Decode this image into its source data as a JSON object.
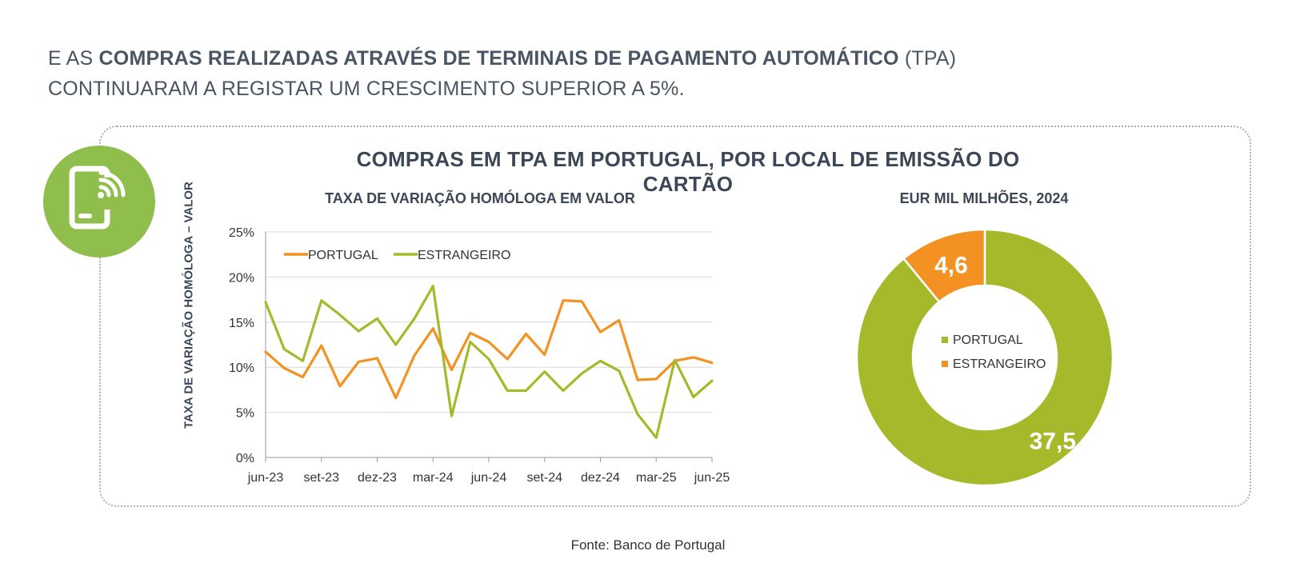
{
  "headline": {
    "line1_pre": "E AS ",
    "line1_bold": "COMPRAS REALIZADAS ATRAVÉS DE TERMINAIS DE PAGAMENTO AUTOMÁTICO",
    "line1_post": " (TPA)",
    "line2": "CONTINUARAM A REGISTAR UM CRESCIMENTO SUPERIOR A 5%."
  },
  "badge": {
    "icon": "mobile-payment-icon",
    "color": "#8fbe4c"
  },
  "panel_title": "COMPRAS EM TPA EM PORTUGAL, POR LOCAL DE EMISSÃO DO CARTÃO",
  "source": "Fonte: Banco de Portugal",
  "chart_data": [
    {
      "type": "line",
      "title": "TAXA DE VARIAÇÃO HOMÓLOGA EM VALOR",
      "ylabel": "TAXA DE VARIAÇÃO HOMÓLOGA – VALOR",
      "xlabel": "",
      "ylim": [
        0,
        25
      ],
      "yticks": [
        "0%",
        "5%",
        "10%",
        "15%",
        "20%",
        "25%"
      ],
      "ytick_values": [
        0,
        5,
        10,
        15,
        20,
        25
      ],
      "xtick_labels": [
        "jun-23",
        "set-23",
        "dez-23",
        "mar-24",
        "jun-24",
        "set-24",
        "dez-24",
        "mar-25",
        "jun-25"
      ],
      "xtick_positions": [
        0,
        3,
        6,
        9,
        12,
        15,
        18,
        21,
        24
      ],
      "grid": true,
      "legend": "top-left",
      "series": [
        {
          "name": "PORTUGAL",
          "color": "#f39223",
          "values": [
            11.7,
            9.9,
            8.9,
            12.4,
            7.9,
            10.6,
            11.0,
            6.6,
            11.3,
            14.3,
            9.7,
            13.8,
            12.8,
            10.9,
            13.7,
            11.4,
            17.4,
            17.3,
            13.9,
            15.2,
            8.6,
            8.7,
            10.7,
            11.1,
            10.5
          ]
        },
        {
          "name": "ESTRANGEIRO",
          "color": "#a6b92b",
          "values": [
            17.2,
            12.0,
            10.7,
            17.4,
            15.8,
            14.0,
            15.4,
            12.5,
            15.4,
            19.0,
            4.6,
            12.8,
            10.9,
            7.4,
            7.4,
            9.5,
            7.4,
            9.3,
            10.7,
            9.6,
            4.8,
            2.2,
            10.8,
            6.7,
            8.5
          ]
        }
      ]
    },
    {
      "type": "pie",
      "title": "EUR MIL MILHÕES, 2024",
      "donut": true,
      "legend": "center",
      "labels": [
        "PORTUGAL",
        "ESTRANGEIRO"
      ],
      "values": [
        37.5,
        4.6
      ],
      "value_labels": [
        "37,5",
        "4,6"
      ],
      "colors": [
        "#a6b92b",
        "#f39223"
      ]
    }
  ]
}
